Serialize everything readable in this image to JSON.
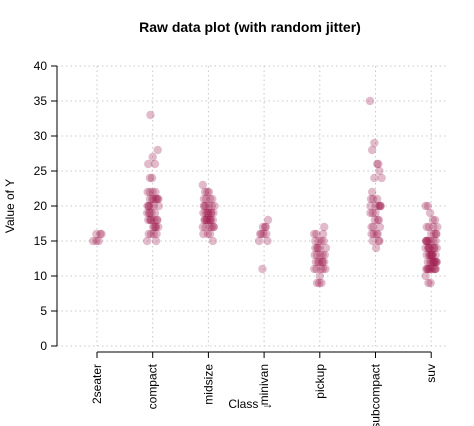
{
  "chart_data": {
    "type": "scatter",
    "title": "Raw data plot (with random jitter)",
    "xlabel": "Class →",
    "ylabel": "Value of Y",
    "categories": [
      "2seater",
      "compact",
      "midsize",
      "minivan",
      "pickup",
      "subcompact",
      "suv"
    ],
    "ylim": [
      0,
      40
    ],
    "yticks": [
      0,
      5,
      10,
      15,
      20,
      25,
      30,
      35,
      40
    ],
    "grid": true,
    "point_color": "#9e1f4f",
    "series": [
      {
        "category": "2seater",
        "x": [
          0.93,
          0.99,
          1.06,
          0.99,
          1.03,
          1.08
        ],
        "y": [
          15,
          16,
          16,
          15,
          15,
          16
        ]
      },
      {
        "category": "compact",
        "x": [
          1.91,
          1.95,
          1.99,
          2.05,
          2.09,
          1.93,
          1.97,
          2.02,
          2.07,
          2.11,
          1.9,
          1.94,
          1.98,
          2.03,
          2.08,
          1.92,
          1.96,
          2.01,
          2.05,
          2.1,
          1.93,
          1.97,
          2.02,
          2.06,
          1.9,
          1.95,
          1.99,
          2.04,
          2.09,
          1.92,
          1.96,
          2.0,
          2.05,
          2.1,
          1.94,
          1.98,
          2.03,
          2.07,
          1.91,
          1.95,
          2.0,
          2.04,
          2.08,
          1.93,
          2.01,
          1.96,
          2.06
        ],
        "y": [
          22,
          22,
          21,
          21,
          21,
          20,
          20,
          20,
          21,
          20,
          19,
          19,
          19,
          18,
          18,
          18,
          18,
          17,
          17,
          17,
          16,
          16,
          16,
          15,
          15,
          24,
          24,
          26,
          28,
          26,
          33,
          27,
          22,
          21,
          19,
          18,
          17,
          16,
          20,
          21,
          22,
          19,
          18,
          20,
          21,
          18,
          17
        ]
      },
      {
        "category": "midsize",
        "x": [
          2.9,
          2.94,
          2.98,
          3.03,
          3.07,
          3.11,
          2.92,
          2.96,
          3.0,
          3.05,
          3.09,
          2.91,
          2.95,
          2.99,
          3.04,
          3.08,
          2.93,
          2.97,
          3.02,
          3.06,
          3.1,
          2.9,
          2.95,
          2.99,
          3.03,
          3.08,
          2.92,
          2.96,
          3.01,
          3.05,
          2.94,
          3.0,
          3.06,
          2.97,
          3.02,
          2.91,
          3.04,
          2.98,
          3.09,
          2.93,
          3.01
        ],
        "y": [
          23,
          22,
          22,
          21,
          21,
          20,
          20,
          20,
          19,
          19,
          19,
          19,
          19,
          18,
          18,
          18,
          18,
          18,
          18,
          17,
          17,
          17,
          17,
          16,
          16,
          15,
          21,
          21,
          20,
          19,
          18,
          19,
          20,
          18,
          17,
          16,
          18,
          19,
          17,
          20,
          22
        ]
      },
      {
        "category": "minivan",
        "x": [
          3.91,
          3.95,
          3.99,
          4.03,
          4.07,
          3.93,
          3.97,
          4.02,
          4.06,
          3.98,
          4.04
        ],
        "y": [
          15,
          16,
          16,
          17,
          18,
          16,
          11,
          17,
          15,
          17,
          16
        ]
      },
      {
        "category": "pickup",
        "x": [
          4.9,
          4.94,
          4.98,
          5.03,
          5.07,
          5.11,
          4.92,
          4.96,
          5.0,
          5.05,
          5.09,
          4.91,
          4.95,
          4.99,
          5.04,
          5.08,
          4.93,
          4.97,
          5.02,
          5.06,
          5.1,
          4.9,
          4.95,
          4.99,
          5.03,
          5.08,
          4.92,
          4.96,
          5.01,
          5.05,
          4.94,
          5.0,
          5.06
        ],
        "y": [
          16,
          16,
          15,
          15,
          15,
          14,
          14,
          14,
          14,
          13,
          13,
          13,
          13,
          12,
          12,
          12,
          12,
          12,
          11,
          11,
          11,
          11,
          9,
          9,
          9,
          17,
          15,
          14,
          13,
          12,
          11,
          10,
          16
        ]
      },
      {
        "category": "subcompact",
        "x": [
          5.9,
          5.94,
          5.98,
          6.03,
          6.07,
          6.11,
          5.92,
          5.96,
          6.0,
          6.05,
          6.09,
          5.91,
          5.95,
          5.99,
          6.04,
          6.08,
          5.93,
          5.97,
          6.02,
          6.06,
          5.95,
          6.01,
          6.07,
          5.93,
          6.05,
          5.98,
          6.09,
          6.03,
          5.91,
          6.0,
          6.06,
          5.96,
          6.04,
          5.94,
          6.08
        ],
        "y": [
          35,
          28,
          29,
          26,
          25,
          24,
          21,
          21,
          20,
          20,
          20,
          19,
          19,
          18,
          18,
          17,
          17,
          16,
          16,
          15,
          15,
          14,
          15,
          16,
          26,
          24,
          20,
          21,
          20,
          19,
          18,
          17,
          16,
          22,
          20
        ]
      },
      {
        "category": "suv",
        "x": [
          6.9,
          6.94,
          6.98,
          7.03,
          7.07,
          7.11,
          6.92,
          6.96,
          7.0,
          7.05,
          7.09,
          6.91,
          6.95,
          6.99,
          7.04,
          7.08,
          6.93,
          6.97,
          7.02,
          7.06,
          7.1,
          6.9,
          6.95,
          6.99,
          7.03,
          7.08,
          6.92,
          6.96,
          7.01,
          7.05,
          7.09,
          6.94,
          6.98,
          7.04,
          7.08,
          6.91,
          6.96,
          7.0,
          7.06,
          6.93,
          6.97,
          7.02,
          7.07,
          6.9,
          6.95,
          6.99,
          7.04,
          7.09,
          6.92,
          6.97,
          7.01,
          7.06,
          6.94,
          7.0,
          7.05,
          6.91,
          6.98,
          7.03,
          7.08,
          6.95,
          7.02,
          7.1
        ],
        "y": [
          20,
          20,
          19,
          18,
          18,
          17,
          17,
          17,
          16,
          16,
          16,
          15,
          15,
          15,
          15,
          15,
          15,
          14,
          14,
          14,
          14,
          14,
          14,
          13,
          13,
          13,
          13,
          13,
          13,
          12,
          12,
          12,
          12,
          12,
          12,
          11,
          11,
          11,
          11,
          11,
          11,
          11,
          11,
          10,
          9,
          9,
          17,
          16,
          15,
          14,
          13,
          12,
          11,
          12,
          14,
          15,
          13,
          12,
          11,
          14,
          13,
          12
        ]
      }
    ]
  }
}
